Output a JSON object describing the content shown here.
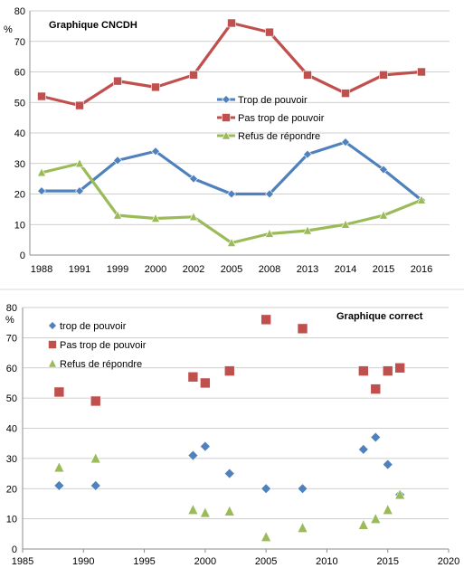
{
  "chart_data": [
    {
      "type": "line",
      "title": "Graphique CNCDH",
      "ylabel": "%",
      "ylim": [
        0,
        80
      ],
      "y_ticks": [
        0,
        10,
        20,
        30,
        40,
        50,
        60,
        70,
        80
      ],
      "categories": [
        "1988",
        "1991",
        "1999",
        "2000",
        "2002",
        "2005",
        "2008",
        "2013",
        "2014",
        "2015",
        "2016"
      ],
      "grid": "horizontal",
      "legend_position": "center-right",
      "series": [
        {
          "name": "Trop de pouvoir",
          "color": "#4f81bd",
          "marker": "diamond",
          "values": [
            21,
            21,
            31,
            34,
            25,
            20,
            20,
            33,
            37,
            28,
            18
          ]
        },
        {
          "name": "Pas trop de pouvoir",
          "color": "#c0504d",
          "marker": "square",
          "values": [
            52,
            49,
            57,
            55,
            59,
            76,
            73,
            59,
            53,
            59,
            60
          ]
        },
        {
          "name": "Refus de répondre",
          "color": "#9bbb59",
          "marker": "triangle",
          "values": [
            27,
            30,
            13,
            12,
            12.5,
            4,
            7,
            8,
            10,
            13,
            18
          ]
        }
      ]
    },
    {
      "type": "scatter",
      "title": "Graphique correct",
      "ylabel": "%",
      "xlim": [
        1985,
        2020
      ],
      "x_ticks": [
        1985,
        1990,
        1995,
        2000,
        2005,
        2010,
        2015,
        2020
      ],
      "ylim": [
        0,
        80
      ],
      "y_ticks": [
        0,
        10,
        20,
        30,
        40,
        50,
        60,
        70,
        80
      ],
      "grid": "horizontal",
      "legend_position": "top-left",
      "x": [
        1988,
        1991,
        1999,
        2000,
        2002,
        2005,
        2008,
        2013,
        2014,
        2015,
        2016
      ],
      "series": [
        {
          "name": "trop de pouvoir",
          "color": "#4f81bd",
          "marker": "diamond",
          "values": [
            21,
            21,
            31,
            34,
            25,
            20,
            20,
            33,
            37,
            28,
            18
          ]
        },
        {
          "name": "Pas trop de pouvoir",
          "color": "#c0504d",
          "marker": "square",
          "values": [
            52,
            49,
            57,
            55,
            59,
            76,
            73,
            59,
            53,
            59,
            60
          ]
        },
        {
          "name": "Refus de répondre",
          "color": "#9bbb59",
          "marker": "triangle",
          "values": [
            27,
            30,
            13,
            12,
            12.5,
            4,
            7,
            8,
            10,
            13,
            18
          ]
        }
      ]
    }
  ]
}
